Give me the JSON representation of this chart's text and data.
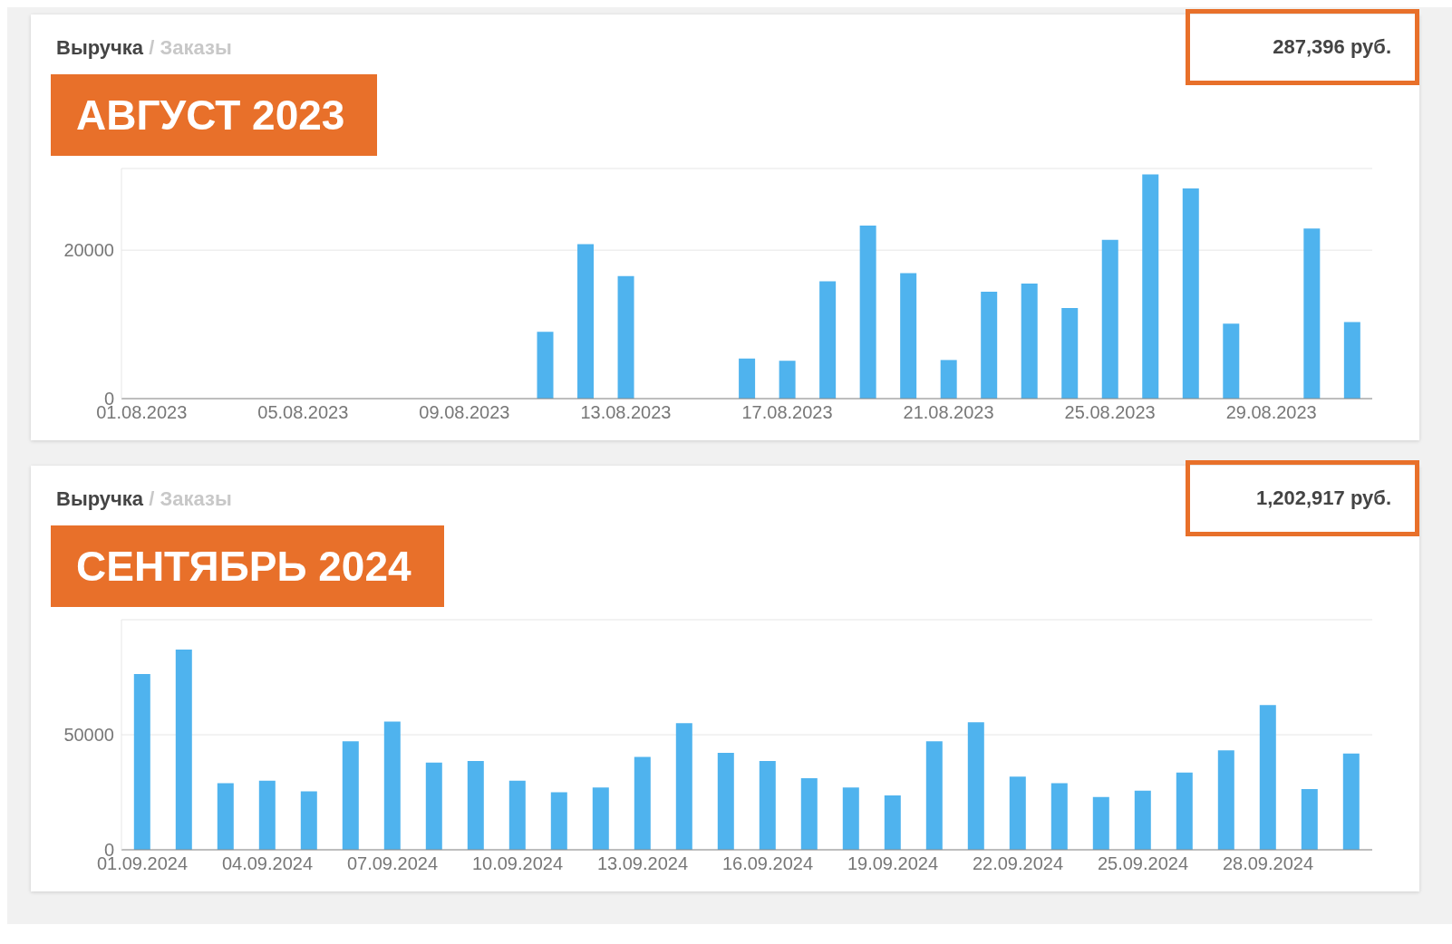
{
  "chart_data": [
    {
      "type": "bar",
      "title": "Выручка",
      "subtitle": "/ Заказы",
      "annotations": [
        "АВГУСТ 2023",
        "287,396 руб."
      ],
      "categories": [
        "01.08.2023",
        null,
        null,
        null,
        "05.08.2023",
        null,
        null,
        null,
        "09.08.2023",
        null,
        null,
        null,
        "13.08.2023",
        null,
        null,
        null,
        "17.08.2023",
        null,
        null,
        null,
        "21.08.2023",
        null,
        null,
        null,
        "25.08.2023",
        null,
        null,
        null,
        "29.08.2023",
        null,
        null
      ],
      "values": [
        0,
        0,
        0,
        0,
        0,
        0,
        0,
        0,
        0,
        0,
        9000,
        20800,
        16500,
        0,
        0,
        5400,
        5100,
        15800,
        23300,
        16900,
        5200,
        14400,
        15500,
        12200,
        21400,
        30200,
        28300,
        10100,
        0,
        22900,
        10300
      ],
      "color": "#4fb3ee",
      "ylim": [
        0,
        31000
      ],
      "yticks": [
        0,
        20000
      ],
      "grid": "y"
    },
    {
      "type": "bar",
      "title": "Выручка",
      "subtitle": "/ Заказы",
      "annotations": [
        "СЕНТЯБРЬ 2024",
        "1,202,917 руб."
      ],
      "categories": [
        "01.09.2024",
        null,
        null,
        "04.09.2024",
        null,
        null,
        "07.09.2024",
        null,
        null,
        "10.09.2024",
        null,
        null,
        "13.09.2024",
        null,
        null,
        "16.09.2024",
        null,
        null,
        "19.09.2024",
        null,
        null,
        "22.09.2024",
        null,
        null,
        "25.09.2024",
        null,
        null,
        "28.09.2024",
        null,
        null
      ],
      "values": [
        76400,
        87000,
        28900,
        30000,
        25400,
        47100,
        55700,
        37900,
        38600,
        30000,
        25000,
        27100,
        40400,
        55000,
        42100,
        38600,
        31100,
        27100,
        23600,
        47100,
        55400,
        31800,
        28900,
        22900,
        25700,
        33600,
        43200,
        62900,
        26400,
        41800
      ],
      "color": "#4fb3ee",
      "ylim": [
        0,
        100000
      ],
      "yticks": [
        0,
        50000,
        {
          "value": 100000,
          "label": null
        }
      ],
      "grid": "y"
    }
  ]
}
